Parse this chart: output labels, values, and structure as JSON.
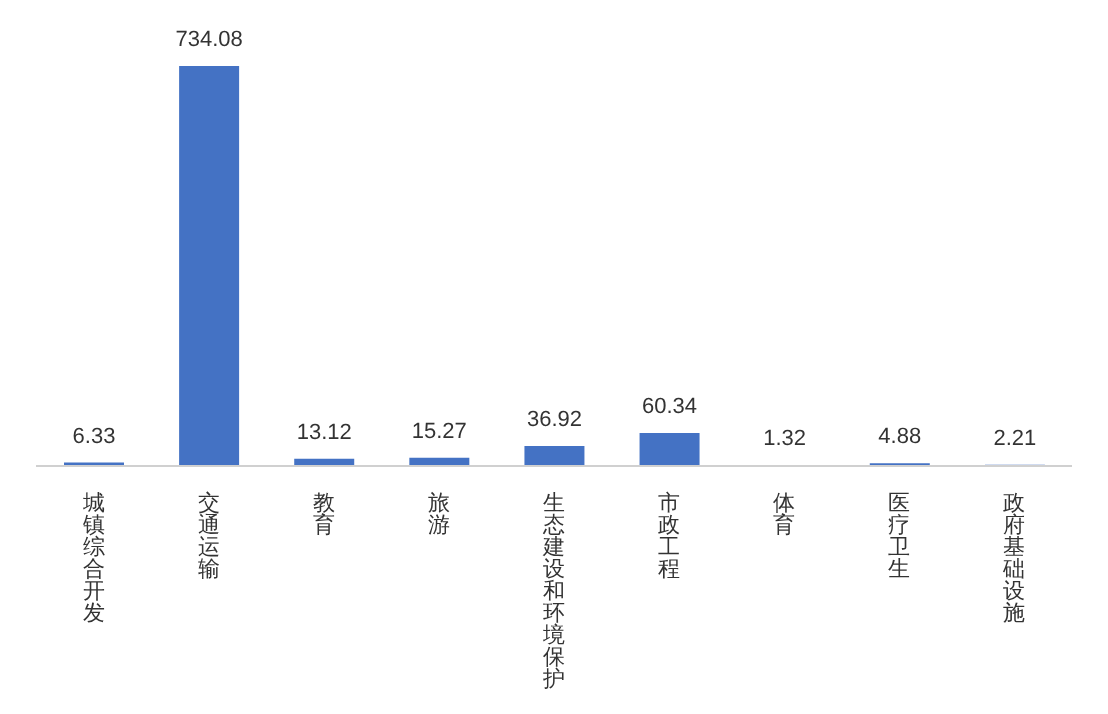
{
  "chart_data": {
    "type": "bar",
    "categories": [
      "城镇综合开发",
      "交通运输",
      "教育",
      "旅游",
      "生态建设和环境保护",
      "市政工程",
      "体育",
      "医疗卫生",
      "政府基础设施"
    ],
    "values": [
      6.33,
      734.08,
      13.12,
      15.27,
      36.92,
      60.34,
      1.32,
      4.88,
      2.21
    ],
    "color": "#4472c4",
    "data_labels": true,
    "grid": false,
    "legend": false
  }
}
